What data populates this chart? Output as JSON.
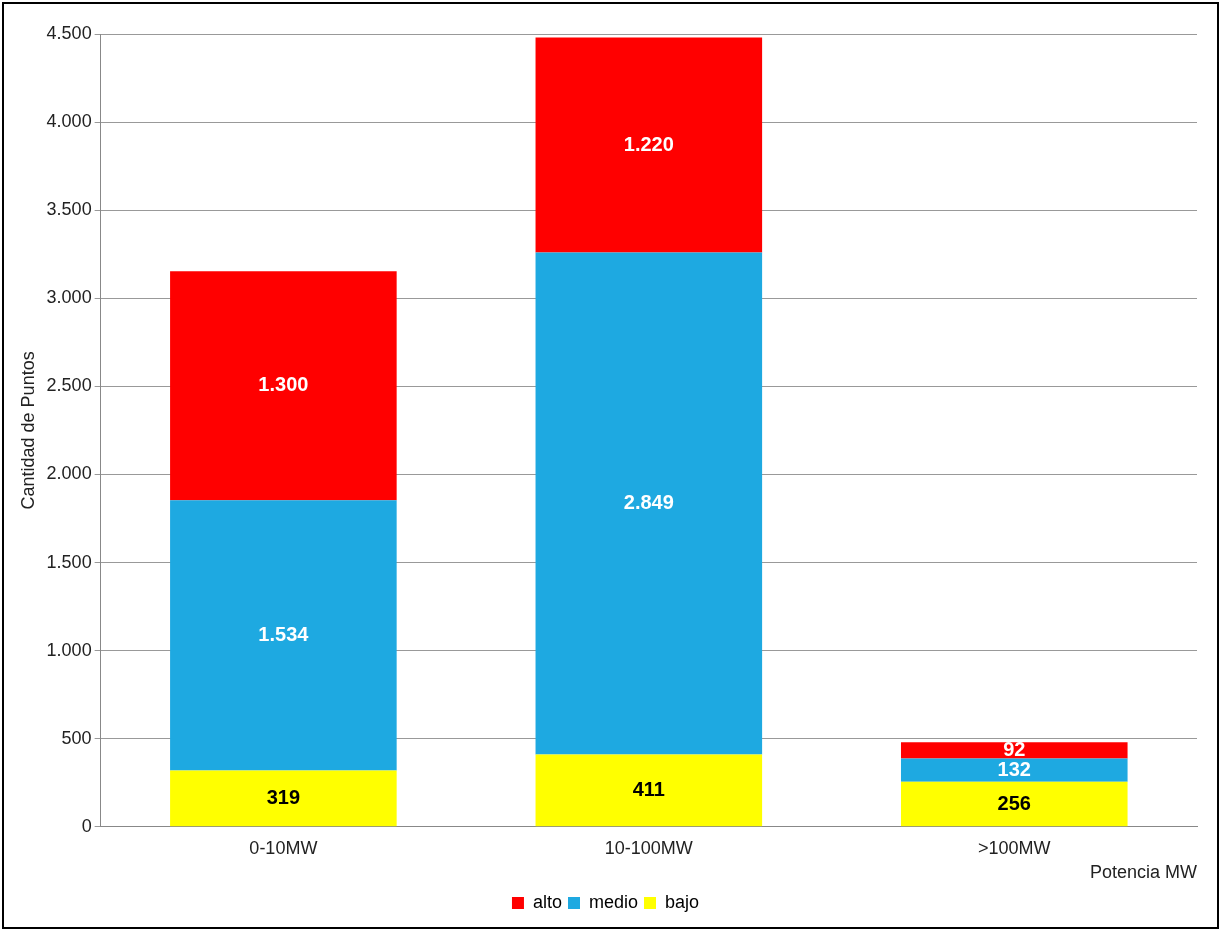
{
  "chart_data": {
    "type": "bar",
    "stacked": true,
    "ylabel": "Cantidad de Puntos",
    "xlabel": "Potencia MW",
    "categories": [
      "0-10MW",
      "10-100MW",
      ">100MW"
    ],
    "series": [
      {
        "name": "bajo",
        "color": "#ffff00",
        "values": [
          319,
          411,
          256
        ],
        "value_labels": [
          "319",
          "411",
          "256"
        ]
      },
      {
        "name": "medio",
        "color": "#1ea9e1",
        "values": [
          1534,
          2849,
          132
        ],
        "value_labels": [
          "1.534",
          "2.849",
          "132"
        ]
      },
      {
        "name": "alto",
        "color": "#ff0000",
        "values": [
          1300,
          1220,
          92
        ],
        "value_labels": [
          "1.300",
          "1.220",
          "92"
        ]
      }
    ],
    "ylim": [
      0,
      4500
    ],
    "yticks": [
      0,
      {
        "value": 500,
        "label": "500"
      },
      {
        "value": 1000,
        "label": "1.000"
      },
      {
        "value": 1500,
        "label": "1.500"
      },
      {
        "value": 2000,
        "label": "2.000"
      },
      {
        "value": 2500,
        "label": "2.500"
      },
      {
        "value": 3000,
        "label": "3.000"
      },
      {
        "value": 3500,
        "label": "3.500"
      },
      {
        "value": 4000,
        "label": "4.000"
      },
      {
        "value": 4500,
        "label": "4.500"
      }
    ],
    "grid": "y",
    "legend": "bottom"
  }
}
